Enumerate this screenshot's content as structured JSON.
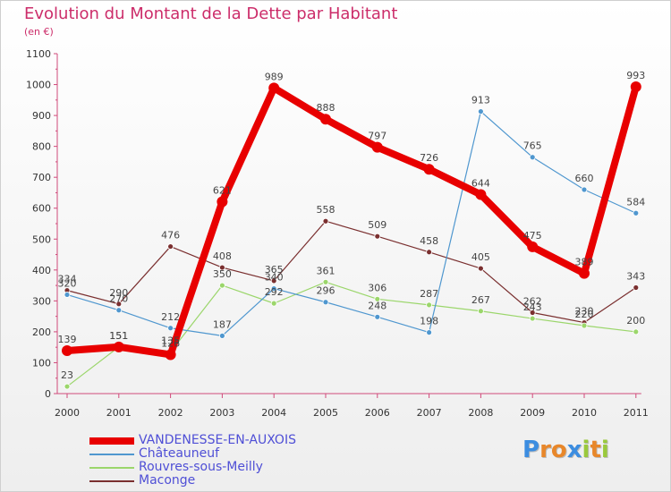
{
  "title": "Evolution du Montant de la Dette par Habitant",
  "subtitle": "(en €)",
  "brand": {
    "text": "Proxiti",
    "letters": [
      "P",
      "r",
      "o",
      "x",
      "i",
      "t",
      "i"
    ],
    "colors": [
      "#3c8de0",
      "#e8872a",
      "#e8872a",
      "#3c8de0",
      "#9ac93c",
      "#e8872a",
      "#9ac93c"
    ]
  },
  "chart_data": {
    "type": "line",
    "x": [
      "2000",
      "2001",
      "2002",
      "2003",
      "2004",
      "2005",
      "2006",
      "2007",
      "2008",
      "2009",
      "2010",
      "2011"
    ],
    "ylim": [
      0,
      1100
    ],
    "yticks": [
      0,
      100,
      200,
      300,
      400,
      500,
      600,
      700,
      800,
      900,
      1000,
      1100
    ],
    "grid": false,
    "legend_position": "bottom-left",
    "series": [
      {
        "name": "VANDENESSE-EN-AUXOIS",
        "color": "#e80000",
        "width": 8,
        "radius": 6,
        "values": [
          139,
          151,
          126,
          621,
          989,
          888,
          797,
          726,
          644,
          475,
          389,
          993
        ],
        "labels": [
          "139",
          "151",
          "126",
          "621",
          "989",
          "888",
          "797",
          "726",
          "644",
          "475",
          "389",
          "993"
        ]
      },
      {
        "name": "Châteauneuf",
        "color": "#4f97cf",
        "width": 1.2,
        "radius": 3,
        "values": [
          320,
          270,
          212,
          187,
          340,
          296,
          248,
          198,
          913,
          765,
          660,
          584
        ],
        "labels": [
          "320",
          "270",
          "212",
          "187",
          "340",
          "296",
          "248",
          "198",
          "913",
          "765",
          "660",
          "584"
        ]
      },
      {
        "name": "Rouvres-sous-Meilly",
        "color": "#9bd66b",
        "width": 1.2,
        "radius": 3,
        "values": [
          23,
          151,
          135,
          350,
          292,
          361,
          306,
          287,
          267,
          243,
          220,
          200
        ],
        "labels": [
          "23",
          "151",
          "135",
          "350",
          "292",
          "361",
          "306",
          "287",
          "267",
          "243",
          "220",
          "200"
        ]
      },
      {
        "name": "Maconge",
        "color": "#7a2f2f",
        "width": 1.2,
        "radius": 3,
        "values": [
          334,
          290,
          476,
          408,
          365,
          558,
          509,
          458,
          405,
          262,
          230,
          343
        ],
        "labels": [
          "334",
          "290",
          "476",
          "408",
          "365",
          "558",
          "509",
          "458",
          "405",
          "262",
          "230",
          "343"
        ]
      }
    ]
  }
}
